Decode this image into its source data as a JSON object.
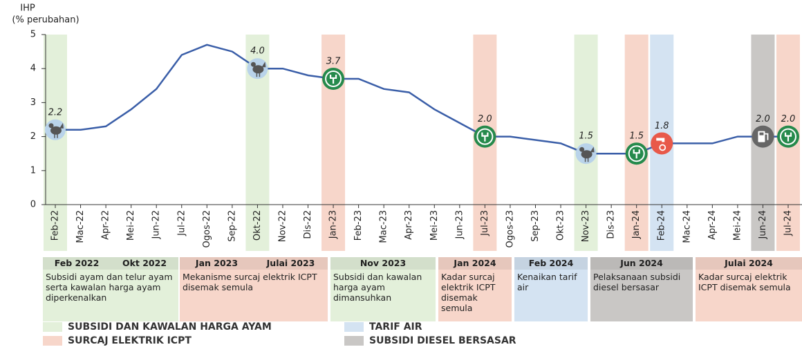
{
  "chart_data": {
    "type": "line",
    "ylabel": [
      "IHP",
      "(% perubahan)"
    ],
    "categories": [
      "Feb-22",
      "Mac-22",
      "Apr-22",
      "Mei-22",
      "Jun-22",
      "Jul-22",
      "Ogos-22",
      "Sep-22",
      "Okt-22",
      "Nov-22",
      "Dis-22",
      "Jan-23",
      "Feb-23",
      "Mac-23",
      "Apr-23",
      "Mei-23",
      "Jun-23",
      "Jul-23",
      "Ogos-23",
      "Sep-23",
      "Okt-23",
      "Nov-23",
      "Dis-23",
      "Jan-24",
      "Feb-24",
      "Mac-24",
      "Apr-24",
      "Mei-24",
      "Jun-24",
      "Jul-24"
    ],
    "values": [
      2.2,
      2.2,
      2.3,
      2.8,
      3.4,
      4.4,
      4.7,
      4.5,
      4.0,
      4.0,
      3.8,
      3.7,
      3.7,
      3.4,
      3.3,
      2.8,
      2.4,
      2.0,
      2.0,
      1.9,
      1.8,
      1.5,
      1.5,
      1.5,
      1.8,
      1.8,
      1.8,
      2.0,
      2.0,
      2.0
    ],
    "value_labels": [
      "2.2",
      null,
      null,
      null,
      null,
      null,
      null,
      null,
      "4.0",
      null,
      null,
      "3.7",
      null,
      null,
      null,
      null,
      null,
      "2.0",
      null,
      null,
      null,
      "1.5",
      null,
      "1.5",
      "1.8",
      null,
      null,
      null,
      "2.0",
      "2.0"
    ],
    "color": "#3a5ea8",
    "ylim": [
      0,
      5
    ],
    "yticks": [
      0,
      1,
      2,
      3,
      4,
      5
    ],
    "groups": [
      {
        "name": "SUBSIDI DAN KAWALAN HARGA AYAM",
        "color": "#e3f0da"
      },
      {
        "name": "SURCAJ ELEKTRIK ICPT",
        "color": "#f7d6ca"
      },
      {
        "name": "TARIF AIR",
        "color": "#d4e3f2"
      },
      {
        "name": "SUBSIDI DIESEL BERSASAR",
        "color": "#c9c7c5"
      }
    ],
    "bands": [
      {
        "category": 0,
        "group": 0
      },
      {
        "category": 8,
        "group": 0
      },
      {
        "category": 11,
        "group": 1
      },
      {
        "category": 17,
        "group": 1
      },
      {
        "category": 21,
        "group": 0
      },
      {
        "category": 23,
        "group": 1
      },
      {
        "category": 24,
        "group": 2
      },
      {
        "category": 28,
        "group": 3
      },
      {
        "category": 29,
        "group": 1
      }
    ]
  },
  "events": [
    {
      "group": 0,
      "headers": [
        "Feb 2022",
        "Okt 2022"
      ],
      "text": "Subsidi ayam dan telur ayam serta kawalan harga ayam diperkenalkan"
    },
    {
      "group": 1,
      "headers": [
        "Jan 2023",
        "Julai 2023"
      ],
      "text": "Mekanisme surcaj elektrik ICPT disemak semula"
    },
    {
      "group": 0,
      "headers": [
        "Nov 2023"
      ],
      "text": "Subsidi dan kawalan harga ayam dimansuhkan"
    },
    {
      "group": 1,
      "headers": [
        "Jan 2024"
      ],
      "text": "Kadar surcaj elektrik ICPT disemak semula"
    },
    {
      "group": 2,
      "headers": [
        "Feb 2024"
      ],
      "text": "Kenaikan tarif air"
    },
    {
      "group": 3,
      "headers": [
        "Jun 2024"
      ],
      "text": "Pelaksanaan subsidi diesel bersasar"
    },
    {
      "group": 1,
      "headers": [
        "Julai 2024"
      ],
      "text": "Kadar surcaj elektrik ICPT disemak semula"
    }
  ]
}
